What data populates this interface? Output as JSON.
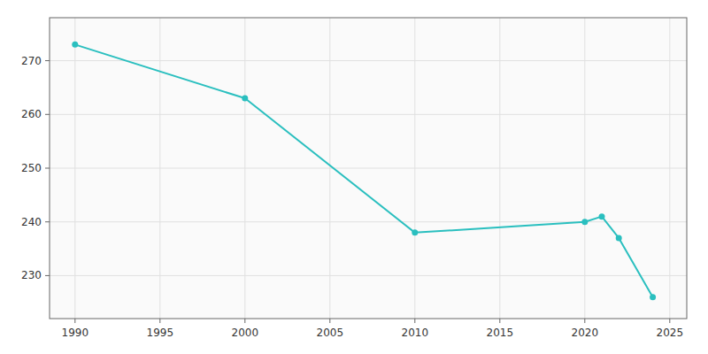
{
  "chart_data": {
    "type": "line",
    "x": [
      1990,
      2000,
      2010,
      2020,
      2021,
      2022,
      2024
    ],
    "values": [
      273,
      263,
      238,
      240,
      241,
      237,
      226
    ],
    "color": "#2abfbf",
    "marker": "circle",
    "grid": true,
    "xlim": [
      1988.5,
      2026
    ],
    "ylim": [
      222,
      278
    ],
    "xticks": [
      1990,
      1995,
      2000,
      2005,
      2010,
      2015,
      2020,
      2025
    ],
    "yticks": [
      230,
      240,
      250,
      260,
      270
    ]
  }
}
